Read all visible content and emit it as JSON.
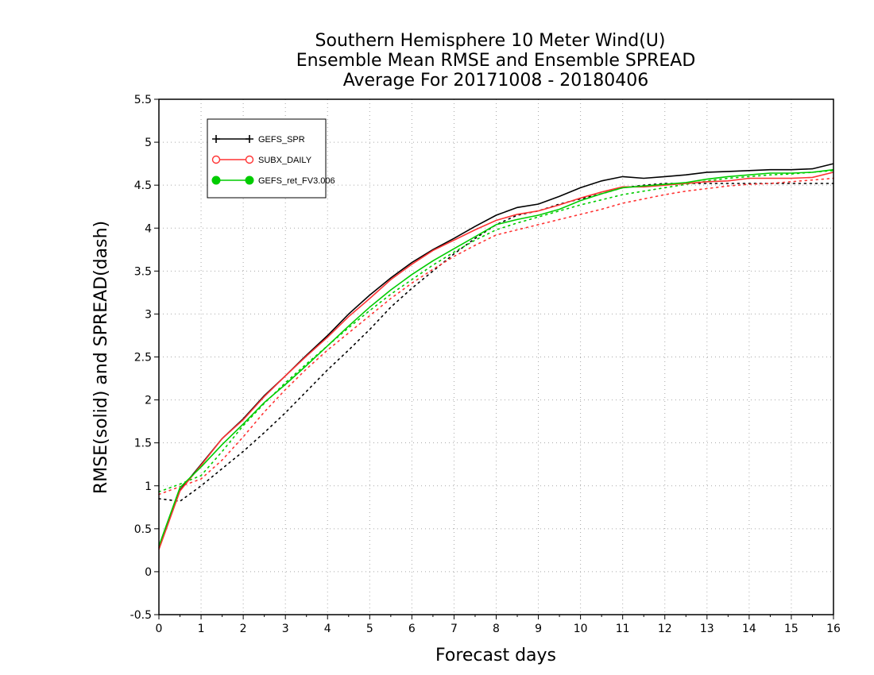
{
  "chart_data": {
    "type": "line",
    "title_lines": [
      "Southern Hemisphere 10 Meter Wind(U)",
      "Ensemble Mean RMSE and Ensemble SPREAD",
      "Average For 20171008 - 20180406"
    ],
    "xlabel": "Forecast days",
    "ylabel": "RMSE(solid) and SPREAD(dash)",
    "xlim": [
      0,
      16
    ],
    "ylim": [
      -0.5,
      5.5
    ],
    "x_ticks": [
      "0",
      "1",
      "2",
      "3",
      "4",
      "5",
      "6",
      "7",
      "8",
      "9",
      "10",
      "11",
      "12",
      "13",
      "14",
      "15",
      "16"
    ],
    "y_ticks": [
      "-0.5",
      "0",
      "0.5",
      "1",
      "1.5",
      "2",
      "2.5",
      "3",
      "3.5",
      "4",
      "4.5",
      "5",
      "5.5"
    ],
    "grid": true,
    "legend_position": "top-left",
    "x": [
      0,
      0.5,
      1,
      1.5,
      2,
      2.5,
      3,
      3.5,
      4,
      4.5,
      5,
      5.5,
      6,
      6.5,
      7,
      7.5,
      8,
      8.5,
      9,
      9.5,
      10,
      10.5,
      11,
      11.5,
      12,
      12.5,
      13,
      13.5,
      14,
      14.5,
      15,
      15.5,
      16
    ],
    "series": [
      {
        "name": "GEFS_SPR",
        "color": "#000000",
        "marker": "plus",
        "rmse": [
          0.28,
          0.95,
          1.25,
          1.55,
          1.78,
          2.05,
          2.28,
          2.52,
          2.75,
          3.0,
          3.22,
          3.42,
          3.6,
          3.75,
          3.88,
          4.02,
          4.15,
          4.24,
          4.28,
          4.37,
          4.47,
          4.55,
          4.6,
          4.58,
          4.6,
          4.62,
          4.65,
          4.66,
          4.67,
          4.68,
          4.68,
          4.69,
          4.75
        ],
        "spread": [
          0.85,
          0.82,
          1.0,
          1.2,
          1.4,
          1.62,
          1.85,
          2.1,
          2.35,
          2.58,
          2.82,
          3.08,
          3.3,
          3.5,
          3.7,
          3.88,
          4.04,
          4.15,
          4.2,
          4.28,
          4.34,
          4.4,
          4.47,
          4.5,
          4.52,
          4.52,
          4.52,
          4.52,
          4.52,
          4.52,
          4.52,
          4.52,
          4.52
        ]
      },
      {
        "name": "SUBX_DAILY",
        "color": "#ff3333",
        "marker": "open-circle",
        "rmse": [
          0.26,
          0.94,
          1.24,
          1.55,
          1.77,
          2.04,
          2.28,
          2.51,
          2.73,
          2.97,
          3.18,
          3.4,
          3.58,
          3.74,
          3.86,
          3.98,
          4.09,
          4.16,
          4.2,
          4.27,
          4.35,
          4.42,
          4.48,
          4.48,
          4.5,
          4.52,
          4.54,
          4.55,
          4.58,
          4.58,
          4.58,
          4.59,
          4.65
        ],
        "spread": [
          0.9,
          0.99,
          1.08,
          1.3,
          1.57,
          1.86,
          2.12,
          2.36,
          2.58,
          2.78,
          2.98,
          3.18,
          3.36,
          3.52,
          3.67,
          3.8,
          3.92,
          3.98,
          4.04,
          4.1,
          4.16,
          4.22,
          4.29,
          4.34,
          4.39,
          4.43,
          4.46,
          4.49,
          4.51,
          4.52,
          4.54,
          4.56,
          4.58
        ]
      },
      {
        "name": "GEFS_ret_FV3.006",
        "color": "#00cc00",
        "marker": "filled-circle",
        "rmse": [
          0.3,
          0.98,
          1.22,
          1.48,
          1.72,
          1.97,
          2.18,
          2.4,
          2.63,
          2.86,
          3.08,
          3.28,
          3.46,
          3.62,
          3.76,
          3.9,
          4.04,
          4.1,
          4.15,
          4.22,
          4.32,
          4.4,
          4.47,
          4.49,
          4.51,
          4.53,
          4.57,
          4.6,
          4.62,
          4.64,
          4.64,
          4.65,
          4.68
        ],
        "spread": [
          0.93,
          1.02,
          1.12,
          1.4,
          1.7,
          1.96,
          2.2,
          2.42,
          2.63,
          2.84,
          3.04,
          3.23,
          3.4,
          3.57,
          3.72,
          3.86,
          3.98,
          4.06,
          4.13,
          4.2,
          4.27,
          4.33,
          4.39,
          4.43,
          4.47,
          4.51,
          4.55,
          4.58,
          4.6,
          4.62,
          4.63,
          4.65,
          4.67
        ]
      }
    ]
  }
}
